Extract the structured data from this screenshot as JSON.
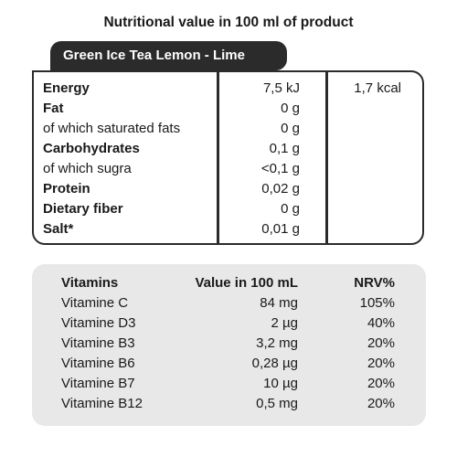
{
  "title": "Nutritional value in 100 ml of product",
  "product_name": "Green Ice Tea Lemon - Lime",
  "nutrition": [
    {
      "label": "Energy",
      "bold": true,
      "value": "7,5 kJ",
      "kcal": "1,7 kcal"
    },
    {
      "label": "Fat",
      "bold": true,
      "value": "0 g",
      "kcal": ""
    },
    {
      "label": "of which saturated fats",
      "bold": false,
      "value": "0 g",
      "kcal": ""
    },
    {
      "label": "Carbohydrates",
      "bold": true,
      "value": "0,1 g",
      "kcal": ""
    },
    {
      "label": "of which sugra",
      "bold": false,
      "value": "<0,1 g",
      "kcal": ""
    },
    {
      "label": "Protein",
      "bold": true,
      "value": "0,02 g",
      "kcal": ""
    },
    {
      "label": "Dietary fiber",
      "bold": true,
      "value": "0 g",
      "kcal": ""
    },
    {
      "label": "Salt*",
      "bold": true,
      "value": "0,01 g",
      "kcal": ""
    }
  ],
  "vitamins": {
    "headers": {
      "name": "Vitamins",
      "value": "Value in 100 mL",
      "nrv": "NRV%"
    },
    "rows": [
      {
        "name": "Vitamine C",
        "value": "84 mg",
        "nrv": "105%"
      },
      {
        "name": "Vitamine D3",
        "value": "2 µg",
        "nrv": "40%"
      },
      {
        "name": "Vitamine B3",
        "value": "3,2 mg",
        "nrv": "20%"
      },
      {
        "name": "Vitamine B6",
        "value": "0,28 µg",
        "nrv": "20%"
      },
      {
        "name": "Vitamine B7",
        "value": "10 µg",
        "nrv": "20%"
      },
      {
        "name": "Vitamine B12",
        "value": "0,5 mg",
        "nrv": "20%"
      }
    ]
  },
  "colors": {
    "frame": "#2b2b2b",
    "vitamin_bg": "#e8e8e8"
  }
}
